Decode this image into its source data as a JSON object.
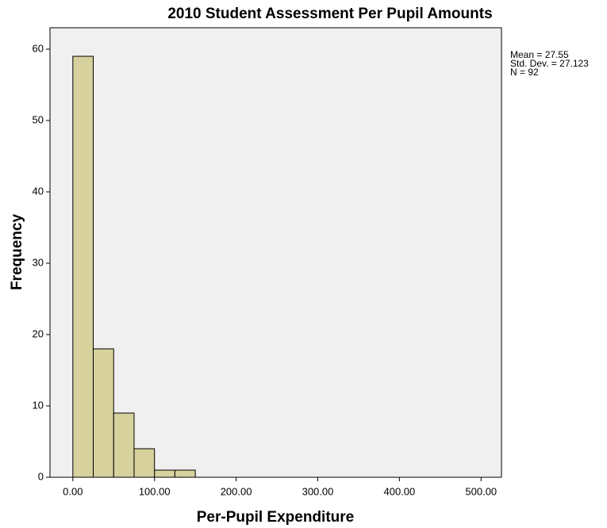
{
  "chart_data": {
    "type": "histogram",
    "title": "2010 Student Assessment Per Pupil Amounts",
    "x_label": "Per-Pupil Expenditure",
    "y_label": "Frequency",
    "bins": [
      0,
      25,
      50,
      75,
      100,
      125,
      150
    ],
    "values": [
      59,
      18,
      9,
      4,
      1,
      1
    ],
    "color": "#d6d19d",
    "xlim": [
      -28,
      525
    ],
    "ylim": [
      0,
      63
    ],
    "xticks": [
      {
        "value": 0,
        "label": "0.00"
      },
      {
        "value": 100,
        "label": "100.00"
      },
      {
        "value": 200,
        "label": "200.00"
      },
      {
        "value": 300,
        "label": "300.00"
      },
      {
        "value": 400,
        "label": "400.00"
      },
      {
        "value": 500,
        "label": "500.00"
      }
    ],
    "yticks": [
      0,
      10,
      20,
      30,
      40,
      50,
      60
    ],
    "annotations": [
      "Mean = 27.55",
      "Std. Dev. = 27.123",
      "N = 92"
    ]
  }
}
